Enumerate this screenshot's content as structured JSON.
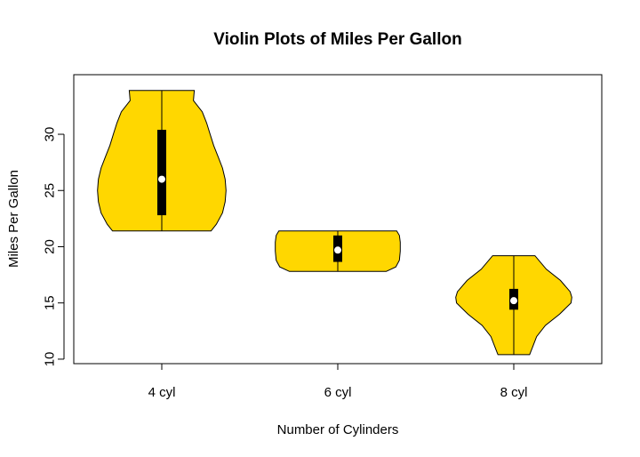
{
  "chart_data": {
    "type": "violin",
    "title": "Violin Plots of Miles Per Gallon",
    "xlabel": "Number of Cylinders",
    "ylabel": "Miles Per Gallon",
    "categories": [
      "4 cyl",
      "6 cyl",
      "8 cyl"
    ],
    "yticks": [
      10,
      15,
      20,
      25,
      30
    ],
    "ylim": [
      9.6,
      35.3
    ],
    "fill_color": "#FFD700",
    "groups": [
      {
        "name": "4 cyl",
        "min": 21.4,
        "q1": 22.8,
        "median": 26.0,
        "q3": 30.4,
        "max": 33.9,
        "profile": [
          [
            21.4,
            0.56
          ],
          [
            22.0,
            0.62
          ],
          [
            23.0,
            0.69
          ],
          [
            24.0,
            0.72
          ],
          [
            25.0,
            0.73
          ],
          [
            26.0,
            0.72
          ],
          [
            27.0,
            0.69
          ],
          [
            28.0,
            0.64
          ],
          [
            29.0,
            0.59
          ],
          [
            30.0,
            0.55
          ],
          [
            31.0,
            0.51
          ],
          [
            32.0,
            0.46
          ],
          [
            33.0,
            0.36
          ],
          [
            33.9,
            0.37
          ]
        ]
      },
      {
        "name": "6 cyl",
        "min": 17.8,
        "q1": 18.65,
        "median": 19.7,
        "q3": 21.0,
        "max": 21.4,
        "profile": [
          [
            17.8,
            0.55
          ],
          [
            18.2,
            0.66
          ],
          [
            18.8,
            0.7
          ],
          [
            19.6,
            0.71
          ],
          [
            20.4,
            0.71
          ],
          [
            21.0,
            0.7
          ],
          [
            21.4,
            0.67
          ]
        ]
      },
      {
        "name": "8 cyl",
        "min": 10.4,
        "q1": 14.4,
        "median": 15.2,
        "q3": 16.25,
        "max": 19.2,
        "profile": [
          [
            10.4,
            0.18
          ],
          [
            11.0,
            0.21
          ],
          [
            12.0,
            0.26
          ],
          [
            13.0,
            0.36
          ],
          [
            14.0,
            0.52
          ],
          [
            15.0,
            0.65
          ],
          [
            15.5,
            0.66
          ],
          [
            16.0,
            0.64
          ],
          [
            17.0,
            0.53
          ],
          [
            18.0,
            0.37
          ],
          [
            19.2,
            0.24
          ]
        ]
      }
    ]
  }
}
